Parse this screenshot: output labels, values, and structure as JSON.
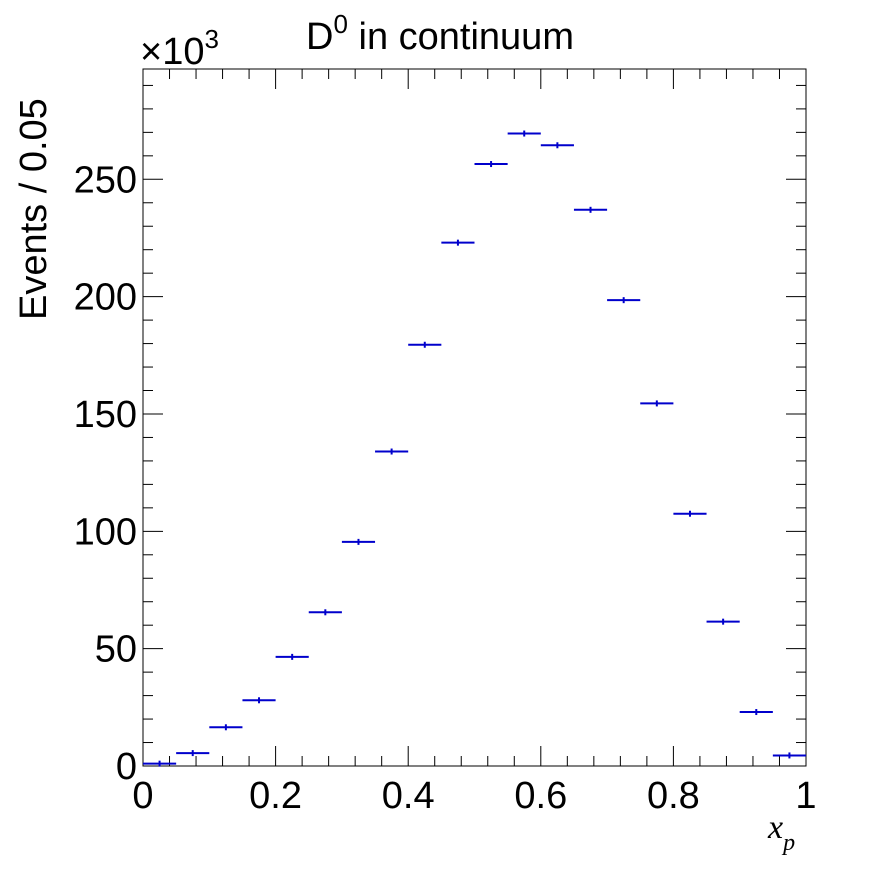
{
  "chart_data": {
    "type": "scatter",
    "title_main": "D",
    "title_sup": "0",
    "title_rest": " in continuum",
    "xlabel_main": "x",
    "xlabel_sub": "p",
    "ylabel": "Events / 0.05",
    "y_multiplier_main": "×10",
    "y_multiplier_sup": "3",
    "xlim": [
      0,
      1
    ],
    "ylim": [
      0,
      297
    ],
    "xticks": [
      0,
      0.2,
      0.4,
      0.6,
      0.8,
      1
    ],
    "xtick_labels": [
      "0",
      "0.2",
      "0.4",
      "0.6",
      "0.8",
      "1"
    ],
    "yticks": [
      0,
      50,
      100,
      150,
      200,
      250
    ],
    "ytick_labels": [
      "0",
      "50",
      "100",
      "150",
      "200",
      "250"
    ],
    "bin_width": 0.05,
    "series": [
      {
        "color": "#0000cc",
        "x": [
          0.025,
          0.075,
          0.125,
          0.175,
          0.225,
          0.275,
          0.325,
          0.375,
          0.425,
          0.475,
          0.525,
          0.575,
          0.625,
          0.675,
          0.725,
          0.775,
          0.825,
          0.875,
          0.925,
          0.975
        ],
        "y": [
          1.0,
          5.5,
          16.5,
          28.0,
          46.5,
          65.5,
          95.5,
          134.0,
          179.5,
          223.0,
          256.5,
          269.5,
          264.5,
          237.0,
          198.5,
          154.5,
          107.5,
          61.5,
          23.0,
          4.5
        ]
      }
    ],
    "grid": false,
    "legend": "none"
  }
}
